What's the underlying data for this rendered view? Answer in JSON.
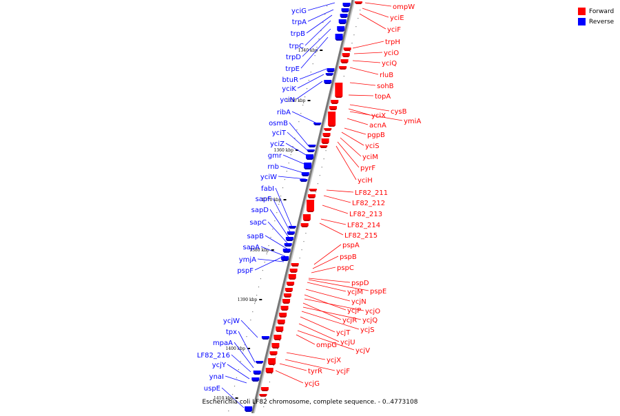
{
  "legend": {
    "forward_label": "Forward",
    "reverse_label": "Reverse",
    "forward_color": "#ff0000",
    "reverse_color": "#0000ff"
  },
  "caption": "Escherichia coli LF82 chromosome, complete sequence. - 0..4773108",
  "ticks": [
    "1340 kbp",
    "1350 kbp",
    "1360 kbp",
    "1370 kbp",
    "1380 kbp",
    "1390 kbp",
    "1400 kbp",
    "1410 kbp"
  ],
  "reverse_genes": [
    "yciG",
    "trpA",
    "trpB",
    "trpC",
    "trpD",
    "trpE",
    "btuR",
    "yciK",
    "yciN",
    "ribA",
    "osmB",
    "yciT",
    "yciZ",
    "gmr",
    "rnb",
    "yciW",
    "fabI",
    "sapF",
    "sapD",
    "sapC",
    "sapB",
    "sapA",
    "ymjA",
    "pspF",
    "ycjW",
    "tpx",
    "mpaA",
    "LF82_216",
    "ycjY",
    "ynaI",
    "uspE"
  ],
  "forward_genes": [
    "ompW",
    "yciE",
    "yciF",
    "trpH",
    "yciO",
    "yciQ",
    "rluB",
    "sohB",
    "topA",
    "cysB",
    "yciX",
    "ymiA",
    "acnA",
    "pgpB",
    "yciS",
    "yciM",
    "pyrF",
    "yciH",
    "LF82_211",
    "LF82_212",
    "LF82_213",
    "LF82_214",
    "LF82_215",
    "pspA",
    "pspB",
    "pspC",
    "pspD",
    "ycjM",
    "pspE",
    "ycjN",
    "ycjP",
    "ycjO",
    "ycjR",
    "ycjQ",
    "ycjS",
    "ycjT",
    "ycjU",
    "ompG",
    "ycjV",
    "ycjX",
    "ycjF",
    "tyrR",
    "ycjG"
  ]
}
